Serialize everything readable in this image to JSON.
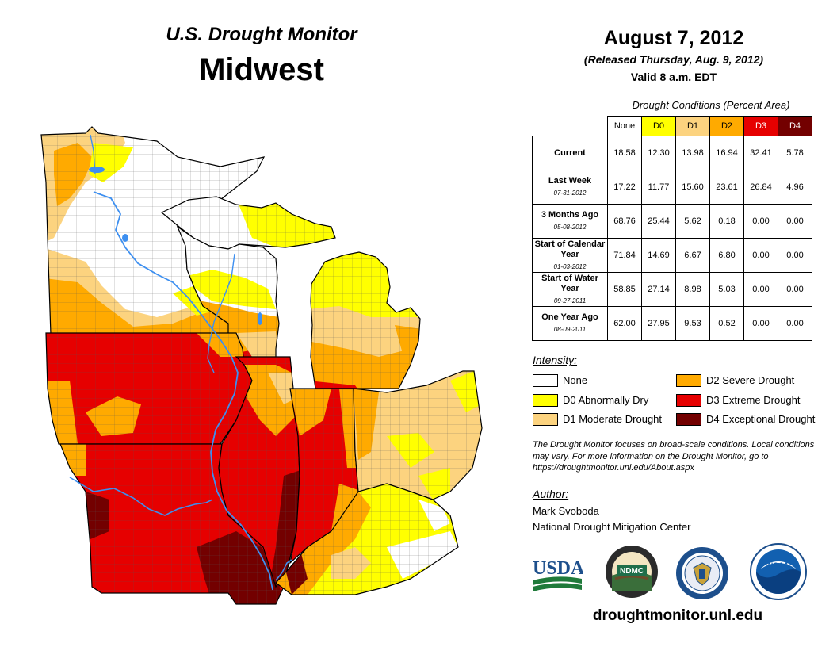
{
  "header": {
    "program": "U.S. Drought Monitor",
    "region": "Midwest",
    "date": "August 7, 2012",
    "released": "(Released Thursday, Aug. 9, 2012)",
    "valid": "Valid 8 a.m. EDT"
  },
  "table": {
    "caption": "Drought Conditions (Percent Area)",
    "columns": [
      {
        "label": "None",
        "color": "#ffffff"
      },
      {
        "label": "D0",
        "color": "#ffff00"
      },
      {
        "label": "D1",
        "color": "#fcd37f"
      },
      {
        "label": "D2",
        "color": "#ffaa00"
      },
      {
        "label": "D3",
        "color": "#e60000"
      },
      {
        "label": "D4",
        "color": "#730000"
      }
    ],
    "rows": [
      {
        "label": "Current",
        "sub": "",
        "values": [
          "18.58",
          "12.30",
          "13.98",
          "16.94",
          "32.41",
          "5.78"
        ]
      },
      {
        "label": "Last Week",
        "sub": "07-31-2012",
        "values": [
          "17.22",
          "11.77",
          "15.60",
          "23.61",
          "26.84",
          "4.96"
        ]
      },
      {
        "label": "3 Months Ago",
        "sub": "05-08-2012",
        "values": [
          "68.76",
          "25.44",
          "5.62",
          "0.18",
          "0.00",
          "0.00"
        ]
      },
      {
        "label": "Start of Calendar Year",
        "sub": "01-03-2012",
        "values": [
          "71.84",
          "14.69",
          "6.67",
          "6.80",
          "0.00",
          "0.00"
        ]
      },
      {
        "label": "Start of Water Year",
        "sub": "09-27-2011",
        "values": [
          "58.85",
          "27.14",
          "8.98",
          "5.03",
          "0.00",
          "0.00"
        ]
      },
      {
        "label": "One Year Ago",
        "sub": "08-09-2011",
        "values": [
          "62.00",
          "27.95",
          "9.53",
          "0.52",
          "0.00",
          "0.00"
        ]
      }
    ]
  },
  "legend": {
    "title": "Intensity:",
    "items": [
      {
        "label": "None",
        "color": "#ffffff"
      },
      {
        "label": "D0 Abnormally Dry",
        "color": "#ffff00"
      },
      {
        "label": "D1 Moderate Drought",
        "color": "#fcd37f"
      },
      {
        "label": "D2 Severe Drought",
        "color": "#ffaa00"
      },
      {
        "label": "D3 Extreme Drought",
        "color": "#e60000"
      },
      {
        "label": "D4 Exceptional Drought",
        "color": "#730000"
      }
    ]
  },
  "note": "The Drought Monitor focuses on broad-scale conditions. Local conditions may vary. For more information on the Drought Monitor, go to https://droughtmonitor.unl.edu/About.aspx",
  "author": {
    "title": "Author:",
    "name": "Mark Svoboda",
    "org": "National Drought Mitigation Center"
  },
  "logos": {
    "usda": "USDA",
    "ndmc": "NDMC",
    "noaa": "NOAA"
  },
  "site": "droughtmonitor.unl.edu"
}
